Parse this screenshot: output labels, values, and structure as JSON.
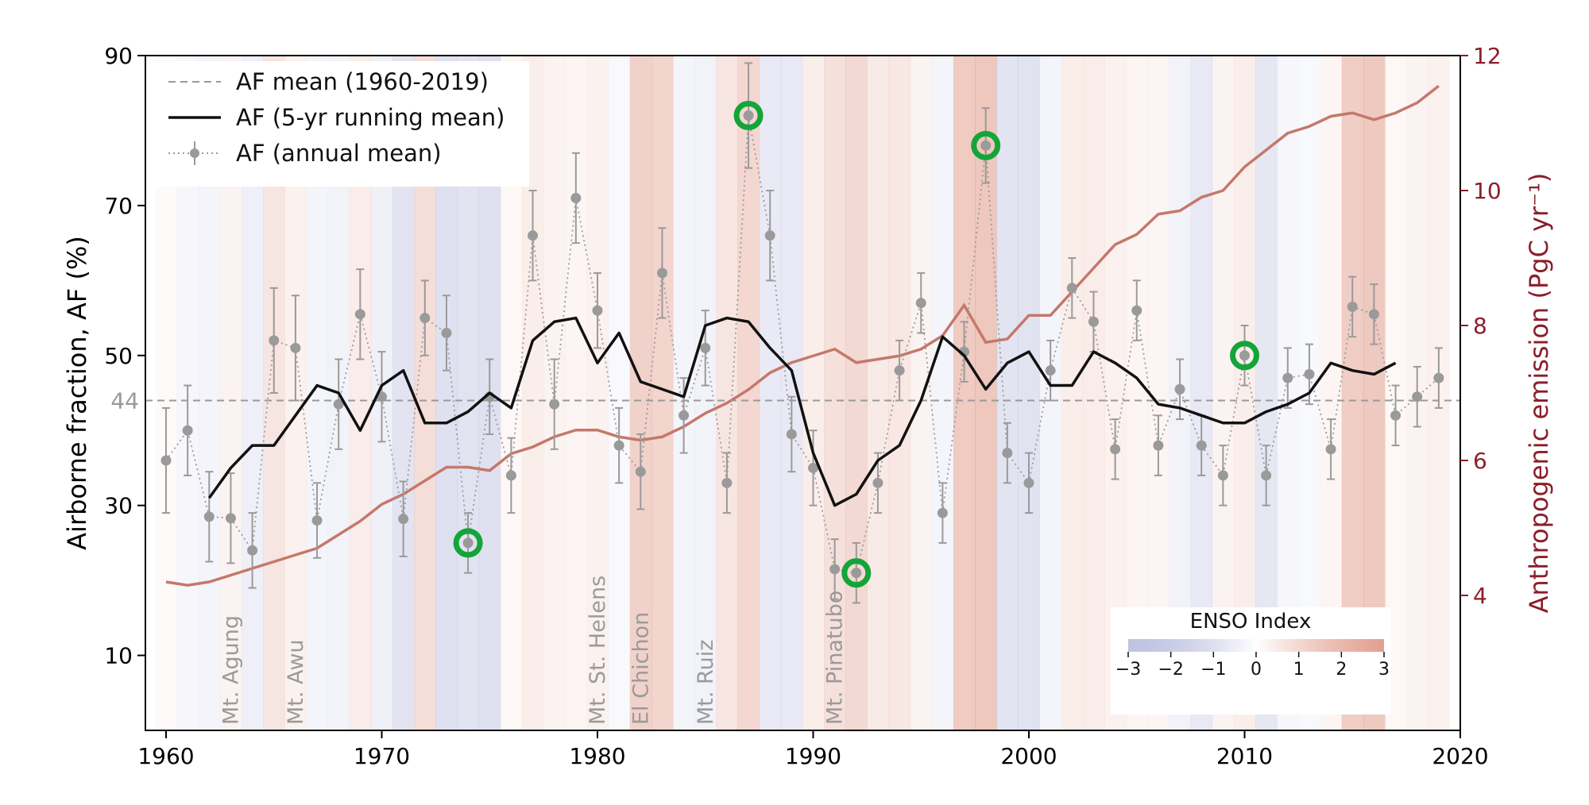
{
  "chart_data": {
    "type": "line",
    "xlim": [
      1959,
      2020
    ],
    "ylim_left": [
      0,
      90
    ],
    "ylim_right": [
      2,
      12
    ],
    "ylabel_left": "Airborne fraction, AF (%)",
    "ylabel_right": "Anthropogenic emission (PgC yr⁻¹)",
    "xticks": [
      1960,
      1970,
      1980,
      1990,
      2000,
      2010,
      2020
    ],
    "yticks_left": [
      10,
      30,
      50,
      70,
      90
    ],
    "yticks_right": [
      4,
      6,
      8,
      10,
      12
    ],
    "af_mean": 44,
    "af_mean_label": "44",
    "legend": {
      "mean_label": "AF mean (1960-2019)",
      "running_label": "AF (5-yr running mean)",
      "annual_label": "AF (annual mean)"
    },
    "annual_af": {
      "x": [
        1960,
        1961,
        1962,
        1963,
        1964,
        1965,
        1966,
        1967,
        1968,
        1969,
        1970,
        1971,
        1972,
        1973,
        1974,
        1975,
        1976,
        1977,
        1978,
        1979,
        1980,
        1981,
        1982,
        1983,
        1984,
        1985,
        1986,
        1987,
        1988,
        1989,
        1990,
        1991,
        1992,
        1993,
        1994,
        1995,
        1996,
        1997,
        1998,
        1999,
        2000,
        2001,
        2002,
        2003,
        2004,
        2005,
        2006,
        2007,
        2008,
        2009,
        2010,
        2011,
        2012,
        2013,
        2014,
        2015,
        2016,
        2017,
        2018,
        2019
      ],
      "y": [
        36,
        40,
        28.5,
        28.3,
        24,
        52,
        51,
        28,
        43.5,
        55.5,
        44.5,
        28.2,
        55,
        53,
        25,
        44.5,
        34,
        66,
        43.5,
        71,
        56,
        38,
        34.5,
        61,
        42,
        51,
        33,
        82,
        66,
        39.5,
        35,
        21.5,
        21,
        33,
        48,
        57,
        29,
        50.5,
        78,
        37,
        33,
        48,
        59,
        54.5,
        37.5,
        56,
        38,
        45.5,
        38,
        34,
        50,
        34,
        47,
        47.5,
        37.5,
        56.5,
        55.5,
        42,
        44.5,
        47
      ],
      "err": [
        7,
        6,
        6,
        6,
        5,
        7,
        7,
        5,
        6,
        6,
        6,
        5,
        5,
        5,
        4,
        5,
        5,
        6,
        6,
        6,
        5,
        5,
        5,
        6,
        5,
        5,
        4,
        7,
        6,
        5,
        5,
        4,
        4,
        4,
        4,
        4,
        4,
        4,
        5,
        4,
        4,
        4,
        4,
        4,
        4,
        4,
        4,
        4,
        4,
        4,
        4,
        4,
        4,
        4,
        4,
        4,
        4,
        4,
        4,
        4
      ]
    },
    "running_af": {
      "x": [
        1962,
        1963,
        1964,
        1965,
        1966,
        1967,
        1968,
        1969,
        1970,
        1971,
        1972,
        1973,
        1974,
        1975,
        1976,
        1977,
        1978,
        1979,
        1980,
        1981,
        1982,
        1983,
        1984,
        1985,
        1986,
        1987,
        1988,
        1989,
        1990,
        1991,
        1992,
        1993,
        1994,
        1995,
        1996,
        1997,
        1998,
        1999,
        2000,
        2001,
        2002,
        2003,
        2004,
        2005,
        2006,
        2007,
        2008,
        2009,
        2010,
        2011,
        2012,
        2013,
        2014,
        2015,
        2016,
        2017
      ],
      "y": [
        31,
        35,
        38,
        38,
        42,
        46,
        45,
        40,
        46,
        48,
        41,
        41,
        42.5,
        45,
        43,
        52,
        54.5,
        55,
        49,
        53,
        46.5,
        45.5,
        44.5,
        54,
        55,
        54.5,
        51,
        48,
        37,
        30,
        31.5,
        36,
        38,
        44,
        52.5,
        50,
        45.5,
        49,
        50.5,
        46,
        46,
        50.5,
        49,
        47,
        43.5,
        43,
        42,
        41,
        41,
        42.5,
        43.5,
        45,
        49,
        48,
        47.5,
        49
      ]
    },
    "emission": {
      "x": [
        1960,
        1961,
        1962,
        1963,
        1964,
        1965,
        1966,
        1967,
        1968,
        1969,
        1970,
        1971,
        1972,
        1973,
        1974,
        1975,
        1976,
        1977,
        1978,
        1979,
        1980,
        1981,
        1982,
        1983,
        1984,
        1985,
        1986,
        1987,
        1988,
        1989,
        1990,
        1991,
        1992,
        1993,
        1994,
        1995,
        1996,
        1997,
        1998,
        1999,
        2000,
        2001,
        2002,
        2003,
        2004,
        2005,
        2006,
        2007,
        2008,
        2009,
        2010,
        2011,
        2012,
        2013,
        2014,
        2015,
        2016,
        2017,
        2018,
        2019
      ],
      "y": [
        4.2,
        4.15,
        4.2,
        4.3,
        4.4,
        4.5,
        4.6,
        4.7,
        4.9,
        5.1,
        5.35,
        5.5,
        5.7,
        5.9,
        5.9,
        5.85,
        6.1,
        6.2,
        6.35,
        6.45,
        6.45,
        6.35,
        6.3,
        6.35,
        6.5,
        6.7,
        6.85,
        7.05,
        7.3,
        7.45,
        7.55,
        7.65,
        7.45,
        7.5,
        7.55,
        7.65,
        7.85,
        8.3,
        7.75,
        7.8,
        8.15,
        8.15,
        8.5,
        8.85,
        9.2,
        9.35,
        9.65,
        9.7,
        9.9,
        10.0,
        10.35,
        10.6,
        10.85,
        10.95,
        11.1,
        11.15,
        11.05,
        11.15,
        11.3,
        11.55
      ]
    },
    "highlighted_years": [
      1974,
      1987,
      1992,
      1998,
      2010
    ],
    "volcanoes": [
      {
        "name": "Mt. Agung",
        "year": 1963
      },
      {
        "name": "Mt. Awu",
        "year": 1966
      },
      {
        "name": "Mt. St. Helens",
        "year": 1980
      },
      {
        "name": "El Chichon",
        "year": 1982
      },
      {
        "name": "Mt. Ruiz",
        "year": 1985
      },
      {
        "name": "Mt. Pinatubo",
        "year": 1991
      }
    ],
    "enso": {
      "title": "ENSO Index",
      "ticks": [
        "−3",
        "−2",
        "−1",
        "0",
        "1",
        "2",
        "3"
      ],
      "years": [
        1960,
        1961,
        1962,
        1963,
        1964,
        1965,
        1966,
        1967,
        1968,
        1969,
        1970,
        1971,
        1972,
        1973,
        1974,
        1975,
        1976,
        1977,
        1978,
        1979,
        1980,
        1981,
        1982,
        1983,
        1984,
        1985,
        1986,
        1987,
        1988,
        1989,
        1990,
        1991,
        1992,
        1993,
        1994,
        1995,
        1996,
        1997,
        1998,
        1999,
        2000,
        2001,
        2002,
        2003,
        2004,
        2005,
        2006,
        2007,
        2008,
        2009,
        2010,
        2011,
        2012,
        2013,
        2014,
        2015,
        2016,
        2017,
        2018,
        2019
      ],
      "values": [
        0,
        -0.2,
        -0.3,
        0.3,
        -0.6,
        0.9,
        0.4,
        -0.3,
        -0.4,
        0.6,
        -0.5,
        -1.1,
        1.2,
        -1.3,
        -1.2,
        -1.3,
        0.1,
        0.5,
        0.3,
        0.2,
        0.4,
        -0.1,
        1.7,
        1.6,
        -0.3,
        -0.4,
        0.9,
        1.5,
        -0.8,
        -0.9,
        0.5,
        1.1,
        1.4,
        0.7,
        0.8,
        0.3,
        -0.3,
        2.0,
        2.2,
        -1.1,
        -1.2,
        -0.3,
        0.5,
        0.6,
        0.4,
        0.2,
        0.2,
        -0.4,
        -0.9,
        0.3,
        0.5,
        -1.0,
        -0.2,
        -0.1,
        0.2,
        1.9,
        2.1,
        0.1,
        0.3,
        0.4
      ]
    },
    "colors": {
      "running": "#111111",
      "annual": "#9a9a9a",
      "emission": "#c4786b",
      "highlight": "#13a538",
      "right_axis": "#8b1e2b",
      "enso_warm": "#d8806a",
      "enso_cold": "#8c92c8"
    }
  }
}
